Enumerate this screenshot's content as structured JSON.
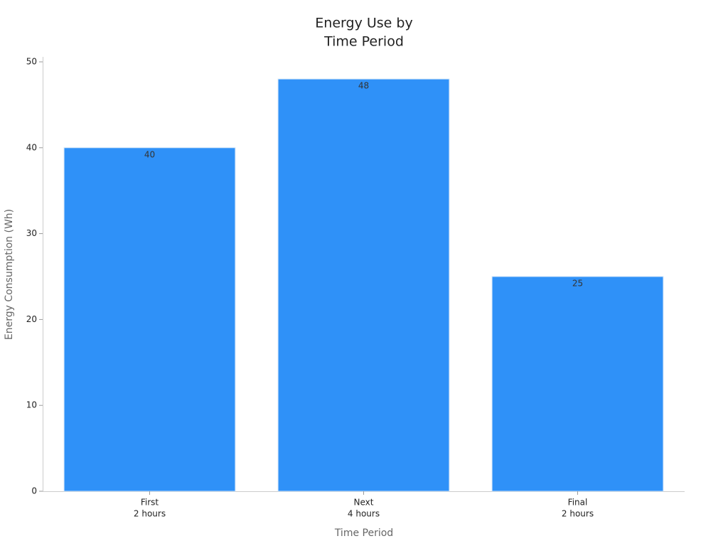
{
  "chart_data": {
    "type": "bar",
    "title": [
      "Energy Use by",
      "Time Period"
    ],
    "categories": [
      [
        "First",
        "2 hours"
      ],
      [
        "Next",
        "4 hours"
      ],
      [
        "Final",
        "2 hours"
      ]
    ],
    "values": [
      40,
      48,
      25
    ],
    "color": "#2f91f8",
    "xlabel": "Time Period",
    "ylabel": "Energy Consumption (Wh)",
    "ylim": [
      0,
      50
    ],
    "yticks": [
      0,
      10,
      20,
      30,
      40,
      50
    ],
    "grid": false
  }
}
